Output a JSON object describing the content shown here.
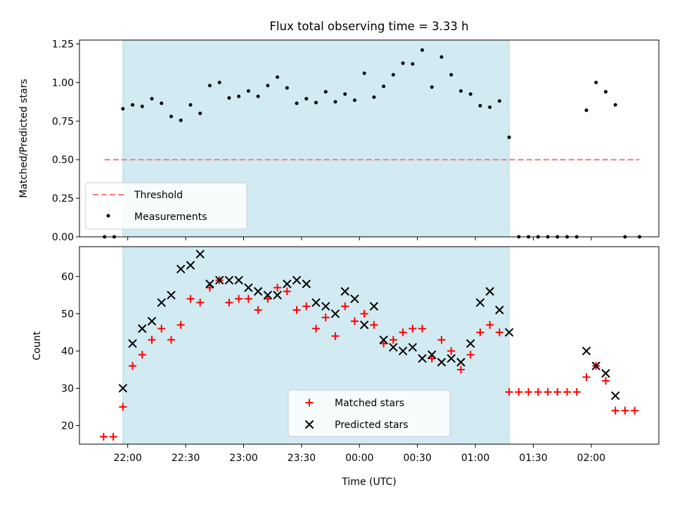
{
  "title": "Flux total observing time = 3.33 h",
  "chart_data": [
    {
      "type": "scatter",
      "ylabel": "Matched/Predicted stars",
      "xlabel": "",
      "ylim": [
        0,
        1.275
      ],
      "xlim_minutes": [
        1295,
        1595
      ],
      "yticks": [
        "0.00",
        "0.25",
        "0.50",
        "0.75",
        "1.00",
        "1.25"
      ],
      "ytick_values": [
        0,
        0.25,
        0.5,
        0.75,
        1.0,
        1.25
      ],
      "shaded_window_minutes": [
        1317.5,
        1517.5
      ],
      "threshold": {
        "name": "Threshold",
        "y": 0.5,
        "x_from": 1308,
        "x_to": 1585,
        "color": "#f08080"
      },
      "legend": {
        "placement": "lower-left",
        "entries": [
          "Threshold",
          "Measurements"
        ]
      },
      "series": [
        {
          "name": "Measurements",
          "color": "#000000",
          "x": [
            1308,
            1313,
            1317.5,
            1322.5,
            1327.5,
            1332.5,
            1337.5,
            1342.5,
            1347.5,
            1352.5,
            1357.5,
            1362.5,
            1367.5,
            1372.5,
            1377.5,
            1382.5,
            1387.5,
            1392.5,
            1397.5,
            1402.5,
            1407.5,
            1412.5,
            1417.5,
            1422.5,
            1427.5,
            1432.5,
            1437.5,
            1442.5,
            1447.5,
            1452.5,
            1457.5,
            1462.5,
            1467.5,
            1472.5,
            1477.5,
            1482.5,
            1487.5,
            1492.5,
            1497.5,
            1502.5,
            1507.5,
            1512.5,
            1517.5,
            1522.5,
            1527.5,
            1532.5,
            1537.5,
            1542.5,
            1547.5,
            1552.5,
            1557.5,
            1562.5,
            1567.5,
            1572.5,
            1577.5,
            1585
          ],
          "y": [
            0,
            0,
            0.83,
            0.855,
            0.845,
            0.895,
            0.865,
            0.78,
            0.755,
            0.855,
            0.8,
            0.98,
            1.0,
            0.9,
            0.91,
            0.945,
            0.91,
            0.98,
            1.035,
            0.965,
            0.865,
            0.895,
            0.87,
            0.94,
            0.875,
            0.925,
            0.885,
            1.06,
            0.905,
            0.975,
            1.05,
            1.125,
            1.12,
            1.21,
            0.97,
            1.165,
            1.05,
            0.945,
            0.925,
            0.85,
            0.84,
            0.88,
            0.645,
            0,
            0,
            0,
            0,
            0,
            0,
            0,
            0.82,
            1.0,
            0.94,
            0.855,
            0,
            0
          ]
        }
      ]
    },
    {
      "type": "scatter",
      "ylabel": "Count",
      "xlabel": "Time (UTC)",
      "ylim": [
        15,
        68
      ],
      "xlim_minutes": [
        1295,
        1595
      ],
      "yticks": [
        "20",
        "30",
        "40",
        "50",
        "60"
      ],
      "ytick_values": [
        20,
        30,
        40,
        50,
        60
      ],
      "xticks": [
        "22:00",
        "22:30",
        "23:00",
        "23:30",
        "00:00",
        "00:30",
        "01:00",
        "01:30",
        "02:00"
      ],
      "xtick_minutes": [
        1320,
        1350,
        1380,
        1410,
        1440,
        1470,
        1500,
        1530,
        1560
      ],
      "shaded_window_minutes": [
        1317.5,
        1517.5
      ],
      "legend": {
        "placement": "lower-center",
        "entries": [
          "Matched stars",
          "Predicted stars"
        ]
      },
      "series": [
        {
          "name": "Matched stars",
          "marker": "plus",
          "color": "#ff0000",
          "x": [
            1307.5,
            1312.5,
            1317.5,
            1322.5,
            1327.5,
            1332.5,
            1337.5,
            1342.5,
            1347.5,
            1352.5,
            1357.5,
            1362.5,
            1367.5,
            1372.5,
            1377.5,
            1382.5,
            1387.5,
            1392.5,
            1397.5,
            1402.5,
            1407.5,
            1412.5,
            1417.5,
            1422.5,
            1427.5,
            1432.5,
            1437.5,
            1442.5,
            1447.5,
            1452.5,
            1457.5,
            1462.5,
            1467.5,
            1472.5,
            1477.5,
            1482.5,
            1487.5,
            1492.5,
            1497.5,
            1502.5,
            1507.5,
            1512.5,
            1517.5,
            1522.5,
            1527.5,
            1532.5,
            1537.5,
            1542.5,
            1547.5,
            1552.5,
            1557.5,
            1562.5,
            1567.5,
            1572.5,
            1577.5,
            1582.5
          ],
          "y": [
            17,
            17,
            25,
            36,
            39,
            43,
            46,
            43,
            47,
            54,
            53,
            57,
            59,
            53,
            54,
            54,
            51,
            54,
            57,
            56,
            51,
            52,
            46,
            49,
            44,
            52,
            48,
            50,
            47,
            42,
            43,
            45,
            46,
            46,
            38,
            43,
            40,
            35,
            39,
            45,
            47,
            45,
            29,
            29,
            29,
            29,
            29,
            29,
            29,
            29,
            33,
            36,
            32,
            24,
            24,
            24
          ]
        },
        {
          "name": "Predicted stars",
          "marker": "x",
          "color": "#000000",
          "x": [
            1317.5,
            1322.5,
            1327.5,
            1332.5,
            1337.5,
            1342.5,
            1347.5,
            1352.5,
            1357.5,
            1362.5,
            1367.5,
            1372.5,
            1377.5,
            1382.5,
            1387.5,
            1392.5,
            1397.5,
            1402.5,
            1407.5,
            1412.5,
            1417.5,
            1422.5,
            1427.5,
            1432.5,
            1437.5,
            1442.5,
            1447.5,
            1452.5,
            1457.5,
            1462.5,
            1467.5,
            1472.5,
            1477.5,
            1482.5,
            1487.5,
            1492.5,
            1497.5,
            1502.5,
            1507.5,
            1512.5,
            1517.5,
            1557.5,
            1562.5,
            1567.5,
            1572.5
          ],
          "y": [
            30,
            42,
            46,
            48,
            53,
            55,
            62,
            63,
            66,
            58,
            59,
            59,
            59,
            57,
            56,
            55,
            55,
            58,
            59,
            58,
            53,
            52,
            50,
            56,
            54,
            47,
            52,
            43,
            41,
            40,
            41,
            38,
            39,
            37,
            38,
            37,
            42,
            53,
            56,
            51,
            45,
            40,
            36,
            34,
            28
          ]
        }
      ]
    }
  ]
}
